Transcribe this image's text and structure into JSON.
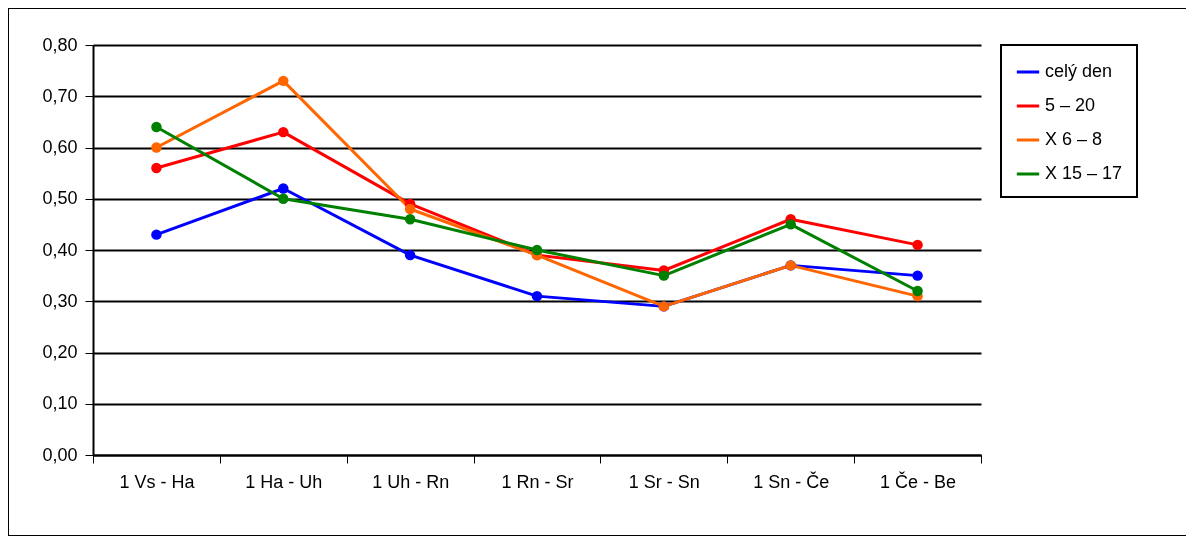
{
  "chart_data": {
    "type": "line",
    "categories": [
      "1 Vs - Ha",
      "1 Ha - Uh",
      "1 Uh - Rn",
      "1 Rn - Sr",
      "1 Sr - Sn",
      "1 Sn - Če",
      "1 Če - Be"
    ],
    "series": [
      {
        "name": "celý den",
        "color": "#0000ff",
        "values": [
          0.43,
          0.52,
          0.39,
          0.31,
          0.29,
          0.37,
          0.35
        ]
      },
      {
        "name": "5 – 20",
        "color": "#ff0000",
        "values": [
          0.56,
          0.63,
          0.49,
          0.39,
          0.36,
          0.46,
          0.41
        ]
      },
      {
        "name": "X 6 – 8",
        "color": "#ff6600",
        "values": [
          0.6,
          0.73,
          0.48,
          0.39,
          0.29,
          0.37,
          0.31
        ]
      },
      {
        "name": "X 15 – 17",
        "color": "#008000",
        "values": [
          0.64,
          0.5,
          0.46,
          0.4,
          0.35,
          0.45,
          0.32
        ]
      }
    ],
    "ylim": [
      0,
      0.8
    ],
    "yticks": [
      {
        "value": 0,
        "label": "0,00"
      },
      {
        "value": 0.1,
        "label": "0,10"
      },
      {
        "value": 0.2,
        "label": "0,20"
      },
      {
        "value": 0.3,
        "label": "0,30"
      },
      {
        "value": 0.4,
        "label": "0,40"
      },
      {
        "value": 0.5,
        "label": "0,50"
      },
      {
        "value": 0.6,
        "label": "0,60"
      },
      {
        "value": 0.7,
        "label": "0,70"
      },
      {
        "value": 0.8,
        "label": "0,80"
      }
    ],
    "grid": "y",
    "legend": "right",
    "marker": "circle",
    "line_style": "solid"
  }
}
